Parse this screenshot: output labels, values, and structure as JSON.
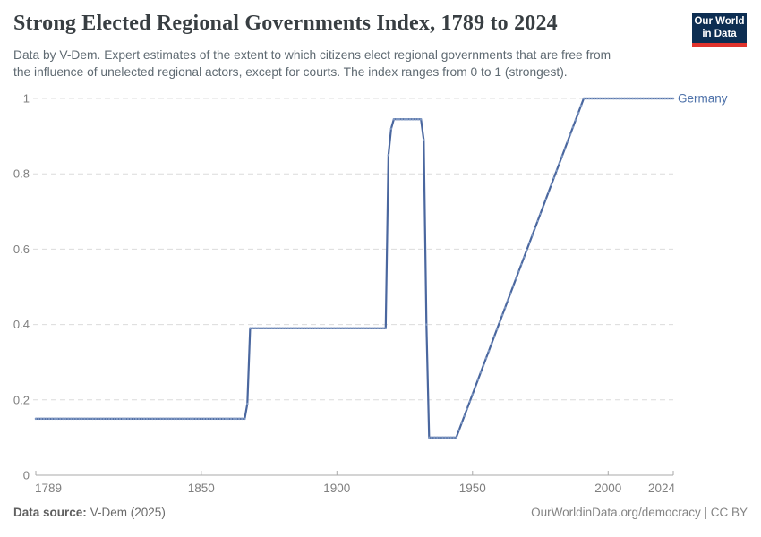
{
  "header": {
    "title": "Strong Elected Regional Governments Index, 1789 to 2024",
    "subtitle_line1": "Data by V-Dem. Expert estimates of the extent to which citizens elect regional governments that are free from",
    "subtitle_line2": "the influence of unelected regional actors, except for courts. The index ranges from 0 to 1 (strongest)."
  },
  "logo": {
    "line1": "Our World",
    "line2": "in Data",
    "bg_color": "#0d2e52",
    "stripe_color": "#e0332c"
  },
  "chart_data": {
    "type": "line",
    "title": "Strong Elected Regional Governments Index, 1789 to 2024",
    "xlabel": "",
    "ylabel": "",
    "xlim": [
      1789,
      2024
    ],
    "ylim": [
      0,
      1
    ],
    "x_ticks": [
      1789,
      1850,
      1900,
      1950,
      2000,
      2024
    ],
    "y_ticks": [
      0,
      0.2,
      0.4,
      0.6,
      0.8,
      1
    ],
    "grid": "horizontal-dashed",
    "gridline_color": "#dcdcdc",
    "axis_color": "#a9a9a9",
    "tick_label_color": "#7f7f7f",
    "legend_position": "end-of-line-label",
    "series": [
      {
        "name": "Germany",
        "color": "#4a679f",
        "marker_color": "#7e97c2",
        "label_color": "#4d71a9",
        "points": [
          [
            1789,
            0.15
          ],
          [
            1866,
            0.15
          ],
          [
            1867,
            0.19
          ],
          [
            1868,
            0.39
          ],
          [
            1918,
            0.39
          ],
          [
            1919,
            0.85
          ],
          [
            1920,
            0.92
          ],
          [
            1921,
            0.945
          ],
          [
            1931,
            0.945
          ],
          [
            1932,
            0.89
          ],
          [
            1933,
            0.4
          ],
          [
            1934,
            0.1
          ],
          [
            1944,
            0.1
          ],
          [
            1991,
            1.0
          ],
          [
            2024,
            1.0
          ]
        ]
      }
    ]
  },
  "footer": {
    "source_label": "Data source:",
    "source_value": "V-Dem (2025)",
    "citation": "OurWorldinData.org/democracy | CC BY"
  }
}
